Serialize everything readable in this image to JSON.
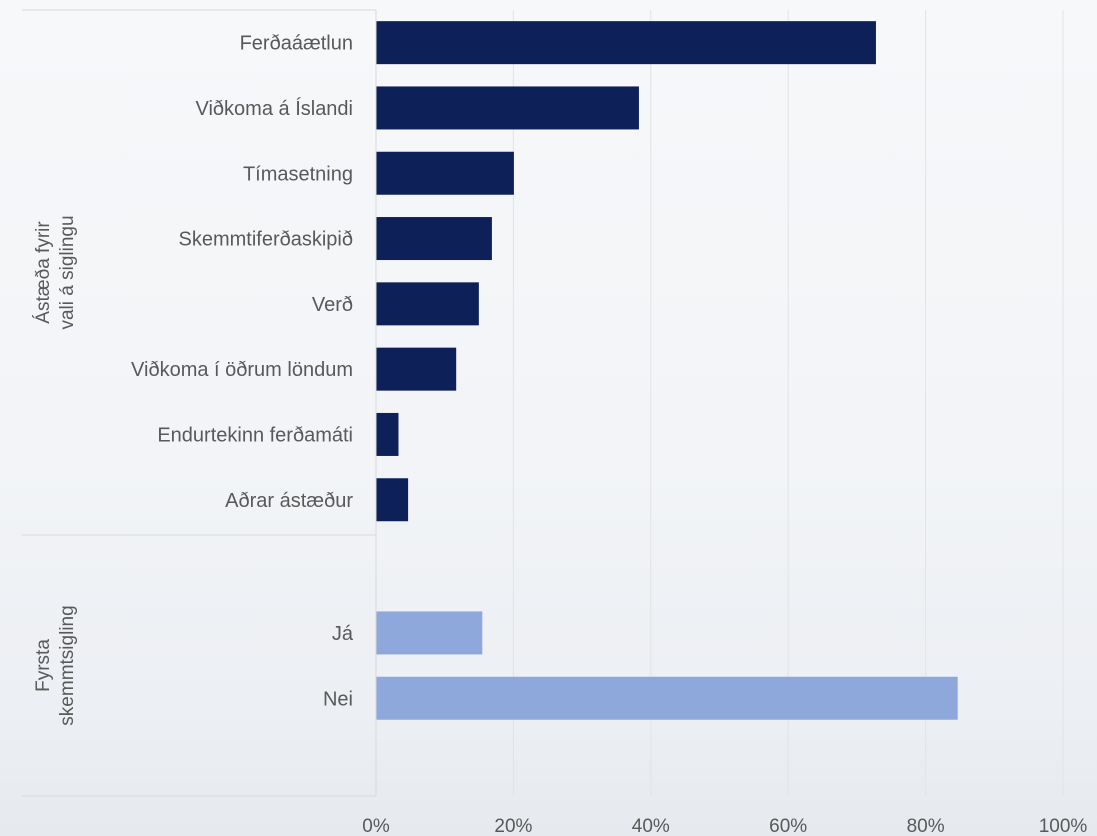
{
  "chart_data": {
    "type": "bar",
    "orientation": "horizontal",
    "xlim": [
      0,
      100
    ],
    "x_ticks": [
      "0%",
      "20%",
      "40%",
      "60%",
      "80%",
      "100%"
    ],
    "grid": "vertical",
    "groups": [
      {
        "label_lines": [
          "Ástæða fyrir",
          "vali á siglingu"
        ],
        "color": "#0d2158",
        "categories": [
          "Ferðaáætlun",
          "Viðkoma á Íslandi",
          "Tímasetning",
          "Skemmtiferðaskipið",
          "Verð",
          "Viðkoma í öðrum löndum",
          "Endurtekinn ferðamáti",
          "Aðrar ástæður"
        ],
        "values": [
          72.7,
          38.2,
          20.0,
          16.8,
          14.9,
          11.6,
          3.2,
          4.6
        ]
      },
      {
        "label_lines": [
          "Fyrsta",
          "skemmtsigling"
        ],
        "color": "#8fa8dc",
        "categories": [
          "Já",
          "Nei"
        ],
        "values": [
          15.4,
          84.6
        ]
      }
    ]
  }
}
